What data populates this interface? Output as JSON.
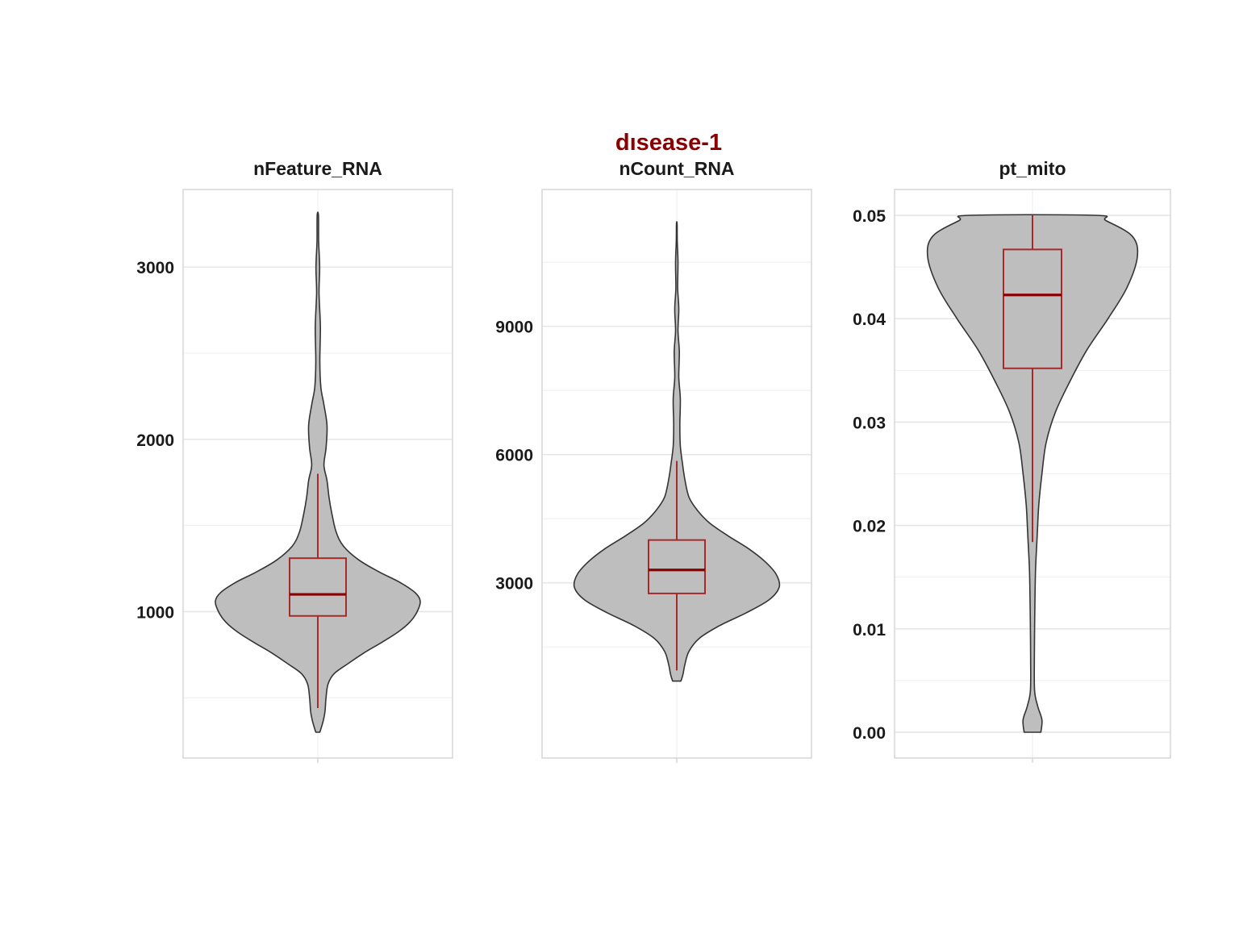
{
  "figure": {
    "title": "dısease-1",
    "title_color": "#8b0000"
  },
  "colors": {
    "violin_fill": "#bebebe",
    "violin_stroke": "#333333",
    "box_stroke": "#a52a2a",
    "median": "#8b0000",
    "grid_major": "#e6e6e6",
    "grid_minor": "#f1f1f1",
    "panel_border": "#d9d9d9"
  },
  "chart_data": [
    {
      "type": "violin",
      "title": "nFeature_RNA",
      "ylim": [
        150,
        3450
      ],
      "yticks": [
        1000,
        2000,
        3000
      ],
      "ytick_labels": [
        "1000",
        "2000",
        "3000"
      ],
      "grid": true,
      "box": {
        "q1": 975,
        "median": 1100,
        "q3": 1310,
        "whisker_low": 440,
        "whisker_high": 1800
      },
      "density": [
        [
          300,
          0.02
        ],
        [
          360,
          0.05
        ],
        [
          420,
          0.07
        ],
        [
          500,
          0.08
        ],
        [
          580,
          0.1
        ],
        [
          640,
          0.16
        ],
        [
          700,
          0.3
        ],
        [
          760,
          0.45
        ],
        [
          820,
          0.62
        ],
        [
          880,
          0.78
        ],
        [
          940,
          0.9
        ],
        [
          1000,
          0.97
        ],
        [
          1060,
          1.0
        ],
        [
          1110,
          0.95
        ],
        [
          1170,
          0.8
        ],
        [
          1230,
          0.6
        ],
        [
          1300,
          0.4
        ],
        [
          1380,
          0.25
        ],
        [
          1460,
          0.18
        ],
        [
          1560,
          0.14
        ],
        [
          1660,
          0.11
        ],
        [
          1760,
          0.09
        ],
        [
          1850,
          0.06
        ],
        [
          1950,
          0.08
        ],
        [
          2080,
          0.09
        ],
        [
          2200,
          0.06
        ],
        [
          2300,
          0.03
        ],
        [
          2450,
          0.02
        ],
        [
          2650,
          0.025
        ],
        [
          2850,
          0.012
        ],
        [
          3000,
          0.018
        ],
        [
          3150,
          0.008
        ],
        [
          3300,
          0.006
        ]
      ]
    },
    {
      "type": "violin",
      "title": "nCount_RNA",
      "ylim": [
        -1100,
        12200
      ],
      "yticks": [
        3000,
        6000,
        9000
      ],
      "ytick_labels": [
        "3000",
        "6000",
        "9000"
      ],
      "grid": true,
      "box": {
        "q1": 2750,
        "median": 3300,
        "q3": 4000,
        "whisker_low": 950,
        "whisker_high": 5850
      },
      "density": [
        [
          700,
          0.04
        ],
        [
          850,
          0.06
        ],
        [
          1100,
          0.08
        ],
        [
          1400,
          0.12
        ],
        [
          1700,
          0.22
        ],
        [
          2000,
          0.42
        ],
        [
          2300,
          0.68
        ],
        [
          2600,
          0.9
        ],
        [
          2900,
          1.0
        ],
        [
          3200,
          0.97
        ],
        [
          3500,
          0.86
        ],
        [
          3800,
          0.7
        ],
        [
          4100,
          0.5
        ],
        [
          4400,
          0.32
        ],
        [
          4700,
          0.2
        ],
        [
          5000,
          0.12
        ],
        [
          5400,
          0.08
        ],
        [
          5800,
          0.055
        ],
        [
          6200,
          0.035
        ],
        [
          6700,
          0.03
        ],
        [
          7300,
          0.035
        ],
        [
          7800,
          0.02
        ],
        [
          8400,
          0.025
        ],
        [
          8900,
          0.012
        ],
        [
          9400,
          0.02
        ],
        [
          9900,
          0.009
        ],
        [
          10500,
          0.012
        ],
        [
          11000,
          0.005
        ],
        [
          11400,
          0.003
        ]
      ]
    },
    {
      "type": "violin",
      "title": "pt_mito",
      "ylim": [
        -0.0025,
        0.0525
      ],
      "yticks": [
        0.0,
        0.01,
        0.02,
        0.03,
        0.04,
        0.05
      ],
      "ytick_labels": [
        "0.00",
        "0.01",
        "0.02",
        "0.03",
        "0.04",
        "0.05"
      ],
      "grid": true,
      "box": {
        "q1": 0.0352,
        "median": 0.0423,
        "q3": 0.0467,
        "whisker_low": 0.0184,
        "whisker_high": 0.05
      },
      "density": [
        [
          0.0,
          0.08
        ],
        [
          0.0012,
          0.09
        ],
        [
          0.0025,
          0.05
        ],
        [
          0.004,
          0.02
        ],
        [
          0.007,
          0.018
        ],
        [
          0.01,
          0.02
        ],
        [
          0.013,
          0.024
        ],
        [
          0.016,
          0.03
        ],
        [
          0.019,
          0.045
        ],
        [
          0.022,
          0.06
        ],
        [
          0.025,
          0.09
        ],
        [
          0.028,
          0.13
        ],
        [
          0.031,
          0.22
        ],
        [
          0.034,
          0.36
        ],
        [
          0.037,
          0.52
        ],
        [
          0.04,
          0.72
        ],
        [
          0.043,
          0.9
        ],
        [
          0.046,
          1.0
        ],
        [
          0.048,
          0.95
        ],
        [
          0.0495,
          0.7
        ],
        [
          0.05,
          0.6
        ]
      ]
    }
  ]
}
